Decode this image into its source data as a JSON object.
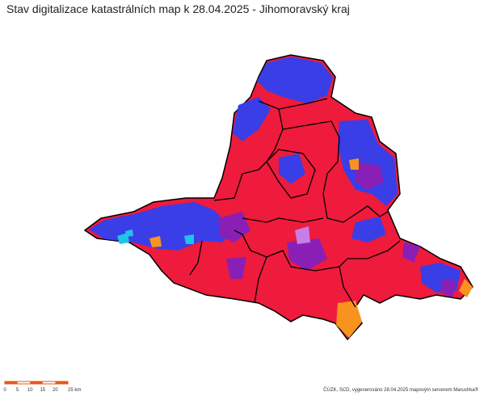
{
  "title": "Stav digitalizace katastrálních map k 28.04.2025 - Jihomoravský kraj",
  "scale_bar": {
    "labels": [
      "0",
      "5",
      "10",
      "15",
      "20",
      "25 km"
    ]
  },
  "credit": "ČÚZK, SCD, vygenerováno 28.04.2025 mapovým serverem Marushka®"
}
